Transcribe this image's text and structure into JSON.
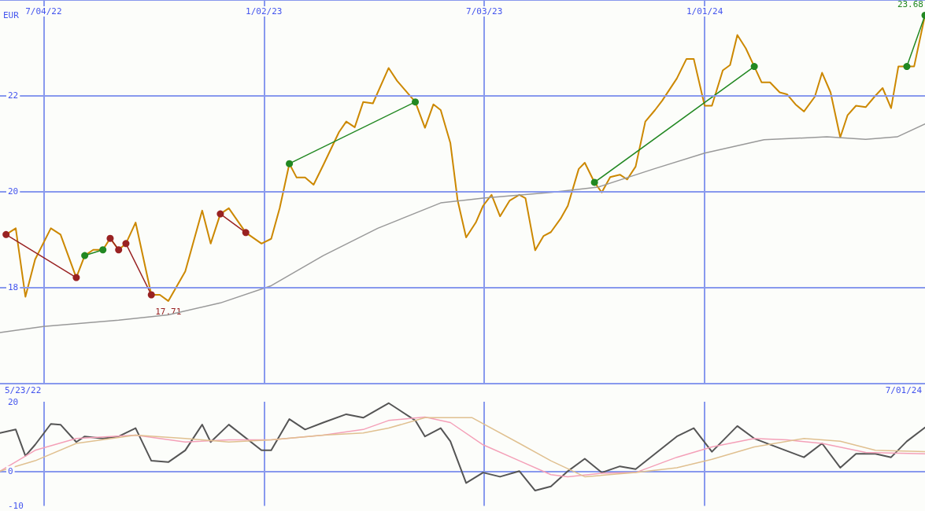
{
  "chart_data": [
    {
      "type": "line",
      "ylabel": "EUR",
      "xlim": [
        "2022-05-29",
        "2024-07-01"
      ],
      "xticks": [
        {
          "value": "2022-07-04",
          "label": "7/04/22"
        },
        {
          "value": "2023-01-02",
          "label": "1/02/23"
        },
        {
          "value": "2023-07-03",
          "label": "7/03/23"
        },
        {
          "value": "2024-01-01",
          "label": "1/01/24"
        }
      ],
      "ylim": [
        16,
        24
      ],
      "yticks": [
        18,
        20,
        22
      ],
      "grid": true,
      "x": [
        "2022-06-03",
        "2022-06-11",
        "2022-06-19",
        "2022-06-27",
        "2022-07-10",
        "2022-07-18",
        "2022-07-31",
        "2022-08-07",
        "2022-08-14",
        "2022-08-22",
        "2022-08-28",
        "2022-09-04",
        "2022-09-10",
        "2022-09-18",
        "2022-10-01",
        "2022-10-08",
        "2022-10-15",
        "2022-10-29",
        "2022-11-12",
        "2022-11-19",
        "2022-11-27",
        "2022-12-04",
        "2022-12-18",
        "2022-12-31",
        "2023-01-08",
        "2023-01-15",
        "2023-01-23",
        "2023-01-29",
        "2023-02-05",
        "2023-02-12",
        "2023-02-20",
        "2023-03-05",
        "2023-03-11",
        "2023-03-18",
        "2023-03-25",
        "2023-04-02",
        "2023-04-15",
        "2023-04-22",
        "2023-05-07",
        "2023-05-15",
        "2023-05-22",
        "2023-05-28",
        "2023-06-05",
        "2023-06-11",
        "2023-06-18",
        "2023-06-26",
        "2023-07-02",
        "2023-07-09",
        "2023-07-16",
        "2023-07-24",
        "2023-08-01",
        "2023-08-06",
        "2023-08-14",
        "2023-08-21",
        "2023-08-27",
        "2023-09-04",
        "2023-09-10",
        "2023-09-19",
        "2023-09-24",
        "2023-10-02",
        "2023-10-08",
        "2023-10-15",
        "2023-10-23",
        "2023-10-29",
        "2023-11-05",
        "2023-11-13",
        "2023-11-21",
        "2023-11-27",
        "2023-12-09",
        "2023-12-17",
        "2023-12-23",
        "2024-01-01",
        "2024-01-07",
        "2024-01-16",
        "2024-01-22",
        "2024-01-28",
        "2024-02-04",
        "2024-02-11",
        "2024-02-17",
        "2024-02-24",
        "2024-03-03",
        "2024-03-09",
        "2024-03-16",
        "2024-03-23",
        "2024-04-01",
        "2024-04-07",
        "2024-04-14",
        "2024-04-22",
        "2024-04-28",
        "2024-05-05",
        "2024-05-13",
        "2024-05-21",
        "2024-05-27",
        "2024-06-03",
        "2024-06-09",
        "2024-06-16",
        "2024-06-22",
        "2024-07-01"
      ],
      "series": [
        {
          "color": "#cc8800",
          "marker": "none",
          "values": [
            19.1,
            19.23,
            17.8,
            18.58,
            19.23,
            19.1,
            18.2,
            18.66,
            18.78,
            18.78,
            19.02,
            18.78,
            18.91,
            19.35,
            17.84,
            17.84,
            17.71,
            18.33,
            19.6,
            18.91,
            19.53,
            19.65,
            19.14,
            18.91,
            19.01,
            19.65,
            20.58,
            20.29,
            20.29,
            20.14,
            20.55,
            21.24,
            21.46,
            21.34,
            21.87,
            21.84,
            22.58,
            22.31,
            21.87,
            21.33,
            21.82,
            21.7,
            21.01,
            19.81,
            19.04,
            19.35,
            19.7,
            19.93,
            19.48,
            19.81,
            19.93,
            19.86,
            18.77,
            19.07,
            19.15,
            19.43,
            19.7,
            20.47,
            20.6,
            20.19,
            19.98,
            20.3,
            20.35,
            20.25,
            20.52,
            21.46,
            21.7,
            21.9,
            22.36,
            22.77,
            22.77,
            21.79,
            21.79,
            22.53,
            22.64,
            23.27,
            22.99,
            22.61,
            22.28,
            22.28,
            22.07,
            22.03,
            21.82,
            21.67,
            21.98,
            22.48,
            22.07,
            21.13,
            21.59,
            21.79,
            21.76,
            22.0,
            22.16,
            21.74,
            22.61,
            22.61,
            22.61,
            23.68
          ]
        },
        {
          "color": "#999999",
          "marker": "none",
          "x": [
            "2022-05-29",
            "2022-07-04",
            "2022-09-04",
            "2022-10-15",
            "2022-11-27",
            "2023-01-08",
            "2023-02-20",
            "2023-04-06",
            "2023-05-28",
            "2023-07-02",
            "2023-08-27",
            "2023-10-05",
            "2023-11-20",
            "2024-01-01",
            "2024-02-19",
            "2024-04-11",
            "2024-05-13",
            "2024-06-08",
            "2024-07-01"
          ],
          "values": [
            17.05,
            17.18,
            17.31,
            17.42,
            17.67,
            18.03,
            18.66,
            19.23,
            19.76,
            19.86,
            19.98,
            20.09,
            20.47,
            20.8,
            21.08,
            21.14,
            21.09,
            21.14,
            21.41
          ]
        },
        {
          "color": "#228822",
          "marker": "circle",
          "x": [
            "2022-08-07",
            "2022-08-22"
          ],
          "values": [
            18.66,
            18.78
          ]
        },
        {
          "color": "#228822",
          "marker": "circle",
          "x": [
            "2023-01-23",
            "2023-05-07"
          ],
          "values": [
            20.58,
            21.87
          ]
        },
        {
          "color": "#228822",
          "marker": "circle",
          "x": [
            "2023-10-02",
            "2024-02-11"
          ],
          "values": [
            20.19,
            22.61
          ]
        },
        {
          "color": "#228822",
          "marker": "circle",
          "x": [
            "2024-06-16",
            "2024-07-01"
          ],
          "values": [
            22.61,
            23.68
          ]
        },
        {
          "color": "#992222",
          "marker": "circle",
          "x": [
            "2022-06-03",
            "2022-07-31"
          ],
          "values": [
            19.1,
            18.2
          ]
        },
        {
          "color": "#992222",
          "marker": "circle",
          "x": [
            "2022-08-28",
            "2022-09-04"
          ],
          "values": [
            19.02,
            18.78
          ]
        },
        {
          "color": "#992222",
          "marker": "circle",
          "x": [
            "2022-09-10",
            "2022-10-01"
          ],
          "values": [
            18.91,
            17.84
          ]
        },
        {
          "color": "#992222",
          "marker": "circle",
          "x": [
            "2022-11-27",
            "2022-12-18"
          ],
          "values": [
            19.53,
            19.14
          ]
        }
      ],
      "annotations": [
        {
          "text": "23.68",
          "x": "2024-07-01",
          "y": 23.68
        },
        {
          "text": "17.71",
          "x": "2022-10-15",
          "y": 17.71
        }
      ]
    },
    {
      "type": "line",
      "xlim": [
        "2022-05-29",
        "2024-07-01"
      ],
      "xticks": [
        {
          "value": "2022-07-04",
          "label": null
        },
        {
          "value": "2023-01-02",
          "label": null
        },
        {
          "value": "2023-07-03",
          "label": null
        },
        {
          "value": "2024-01-01",
          "label": null
        }
      ],
      "ylim": [
        -10,
        20
      ],
      "yticks": [
        -10,
        0,
        20
      ],
      "grid": "x",
      "tick_labels": "y",
      "ref_lines": [
        {
          "axis": "y",
          "value": 0,
          "color": "#8899ee"
        }
      ],
      "annotations": [
        "5/23/22",
        "7/01/24"
      ],
      "series": [
        {
          "color": "#555555",
          "marker": "none",
          "x": [
            "2022-05-29",
            "2022-06-11",
            "2022-06-19",
            "2022-06-27",
            "2022-07-10",
            "2022-07-18",
            "2022-07-31",
            "2022-08-07",
            "2022-08-22",
            "2022-09-04",
            "2022-09-18",
            "2022-10-01",
            "2022-10-15",
            "2022-10-29",
            "2022-11-12",
            "2022-11-19",
            "2022-12-04",
            "2022-12-31",
            "2023-01-08",
            "2023-01-23",
            "2023-02-05",
            "2023-02-20",
            "2023-03-11",
            "2023-03-25",
            "2023-04-15",
            "2023-05-07",
            "2023-05-15",
            "2023-05-28",
            "2023-06-05",
            "2023-06-18",
            "2023-07-02",
            "2023-07-16",
            "2023-08-01",
            "2023-08-14",
            "2023-08-27",
            "2023-09-10",
            "2023-09-24",
            "2023-10-08",
            "2023-10-23",
            "2023-11-05",
            "2023-11-21",
            "2023-12-09",
            "2023-12-23",
            "2024-01-07",
            "2024-01-28",
            "2024-02-11",
            "2024-03-03",
            "2024-03-23",
            "2024-04-07",
            "2024-04-22",
            "2024-05-05",
            "2024-05-21",
            "2024-06-03",
            "2024-06-16",
            "2024-07-01"
          ],
          "values": [
            11,
            12,
            4.4,
            7.6,
            13.6,
            13.4,
            8.4,
            10,
            9.4,
            10,
            12.4,
            3,
            2.6,
            6,
            13.4,
            8.4,
            13.4,
            6,
            6,
            15,
            12,
            14,
            16.4,
            15.4,
            19.6,
            14.6,
            10,
            12.4,
            8.6,
            -3.4,
            -0.4,
            -1.6,
            0,
            -5.6,
            -4.4,
            0,
            3.6,
            -0.4,
            1.4,
            0.6,
            5,
            10,
            12.4,
            5.6,
            13,
            9.4,
            6.6,
            4,
            8,
            1,
            5,
            5,
            4,
            8.6,
            12.6
          ]
        },
        {
          "color": "#f4a0b8",
          "marker": "none",
          "x": [
            "2022-05-29",
            "2022-06-27",
            "2022-07-31",
            "2022-09-18",
            "2022-10-29",
            "2022-12-04",
            "2023-01-08",
            "2023-02-20",
            "2023-03-25",
            "2023-04-15",
            "2023-05-15",
            "2023-06-05",
            "2023-07-02",
            "2023-08-01",
            "2023-08-27",
            "2023-09-10",
            "2023-10-08",
            "2023-11-05",
            "2023-12-09",
            "2024-01-07",
            "2024-02-11",
            "2024-03-09",
            "2024-04-07",
            "2024-05-13",
            "2024-07-01"
          ],
          "values": [
            0,
            6,
            9.4,
            10.4,
            8.4,
            9,
            9,
            10.4,
            12,
            14.6,
            15.6,
            14,
            7.6,
            3,
            -1,
            -1.6,
            -0.6,
            -0.4,
            4,
            7,
            9.4,
            9,
            8,
            5.4,
            5
          ]
        },
        {
          "color": "#e0c090",
          "marker": "none",
          "x": [
            "2022-05-29",
            "2022-06-27",
            "2022-07-31",
            "2022-09-18",
            "2022-10-29",
            "2022-12-04",
            "2023-01-08",
            "2023-02-20",
            "2023-03-25",
            "2023-04-15",
            "2023-05-15",
            "2023-06-23",
            "2023-08-01",
            "2023-08-27",
            "2023-09-24",
            "2023-11-05",
            "2023-12-09",
            "2024-01-07",
            "2024-02-11",
            "2024-03-23",
            "2024-04-22",
            "2024-05-21",
            "2024-07-01"
          ],
          "values": [
            0,
            3,
            8,
            10.4,
            9.4,
            8.4,
            9,
            10.4,
            11,
            12.4,
            15.4,
            15.4,
            8,
            3,
            -1.6,
            -0.4,
            1,
            3.4,
            7,
            9.4,
            8.6,
            6,
            5.6
          ]
        }
      ]
    }
  ]
}
